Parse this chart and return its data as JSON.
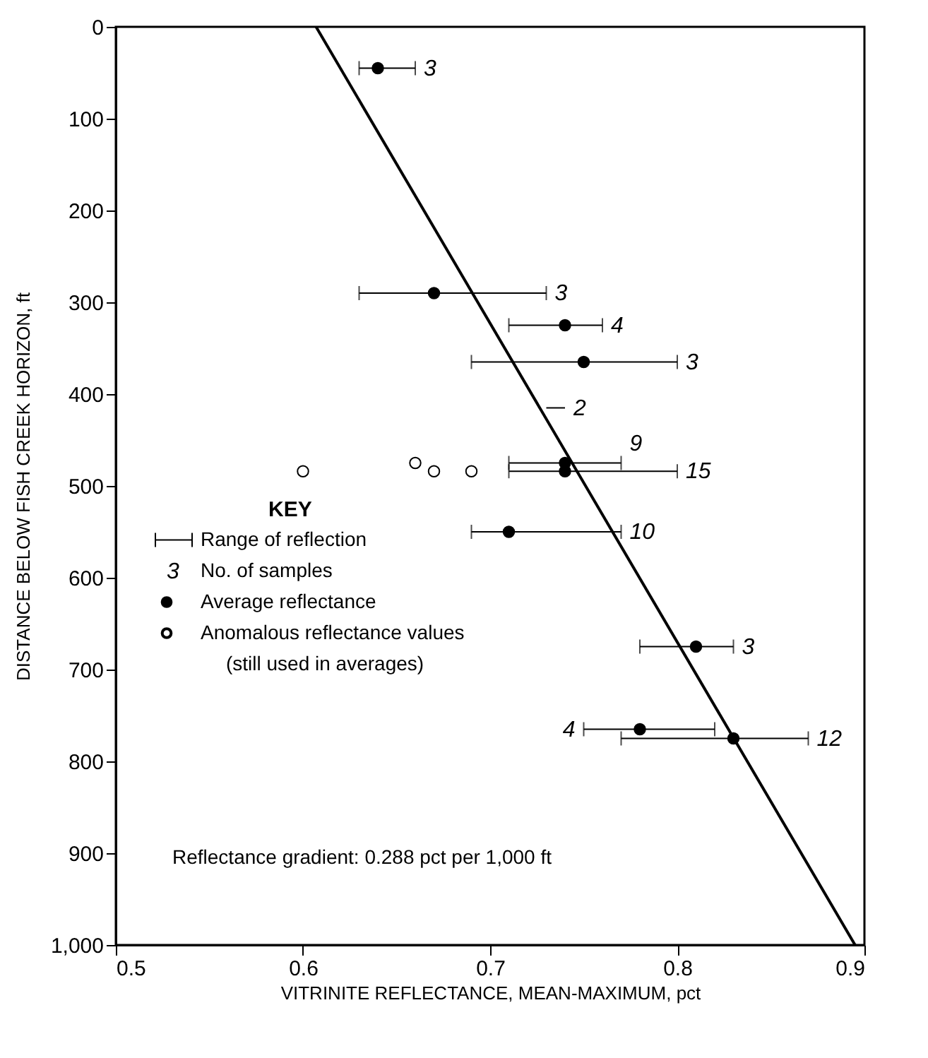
{
  "chart_data": {
    "type": "scatter",
    "xlabel": "VITRINITE REFLECTANCE, MEAN-MAXIMUM, pct",
    "ylabel": "DISTANCE BELOW FISH CREEK HORIZON, ft",
    "xlim": [
      0.5,
      0.9
    ],
    "xticks": [
      0.5,
      0.6,
      0.7,
      0.8,
      0.9
    ],
    "ylim": [
      1000,
      0
    ],
    "yticks": [
      0,
      100,
      200,
      300,
      400,
      500,
      600,
      700,
      800,
      900,
      {
        "value": 1000,
        "label": "1,000"
      }
    ],
    "grid": false,
    "legend": "left",
    "legend_title": "KEY",
    "annotations": [
      "Range of reflection",
      "3",
      "No. of samples",
      "Reflectance gradient: 0.288 pct per 1,000 ft",
      {
        "text": "3",
        "x": 0.66,
        "y": 45
      },
      {
        "text": "3",
        "x": 0.73,
        "y": 290
      },
      {
        "text": "4",
        "x": 0.76,
        "y": 325
      },
      {
        "text": "3",
        "x": 0.8,
        "y": 365
      },
      {
        "text": "2",
        "x": 0.74,
        "y": 415
      },
      {
        "text": "9",
        "x": 0.77,
        "y": 475
      },
      {
        "text": "15",
        "x": 0.8,
        "y": 484
      },
      {
        "text": "10",
        "x": 0.77,
        "y": 550
      },
      {
        "text": "3",
        "x": 0.83,
        "y": 675
      },
      {
        "text": "4",
        "x": 0.75,
        "y": 765
      },
      {
        "text": "12",
        "x": 0.87,
        "y": 775
      }
    ],
    "series": [
      {
        "name": "Average reflectance",
        "color": "#000000",
        "marker": "circle",
        "x": [
          0.64,
          0.67,
          0.74,
          0.75,
          0.74,
          0.74,
          0.71,
          0.81,
          0.78,
          0.83
        ],
        "values": [
          45,
          290,
          325,
          365,
          475,
          484,
          550,
          675,
          765,
          775
        ],
        "xerrors": [
          [
            0.63,
            0.66
          ],
          [
            0.63,
            0.73
          ],
          [
            0.71,
            0.76
          ],
          [
            0.69,
            0.8
          ],
          [
            0.71,
            0.77
          ],
          [
            0.71,
            0.8
          ],
          [
            0.69,
            0.77
          ],
          [
            0.78,
            0.83
          ],
          [
            0.75,
            0.82
          ],
          [
            0.77,
            0.87
          ]
        ]
      },
      {
        "type": "line",
        "color": "#000000",
        "marker": "none",
        "x": [
          0.73,
          0.74
        ],
        "values": [
          415,
          415
        ],
        "line_style": "solid"
      },
      {
        "name": "Anomalous reflectance values (still used in averages)",
        "color": "#ffffff",
        "marker": "circle",
        "x": [
          0.6,
          0.66,
          0.67,
          0.69
        ],
        "values": [
          484,
          475,
          484,
          484
        ]
      },
      {
        "type": "line",
        "color": "#000000",
        "x": [
          0.607,
          0.895
        ],
        "values": [
          0,
          1000
        ],
        "line_style": "solid"
      }
    ]
  }
}
